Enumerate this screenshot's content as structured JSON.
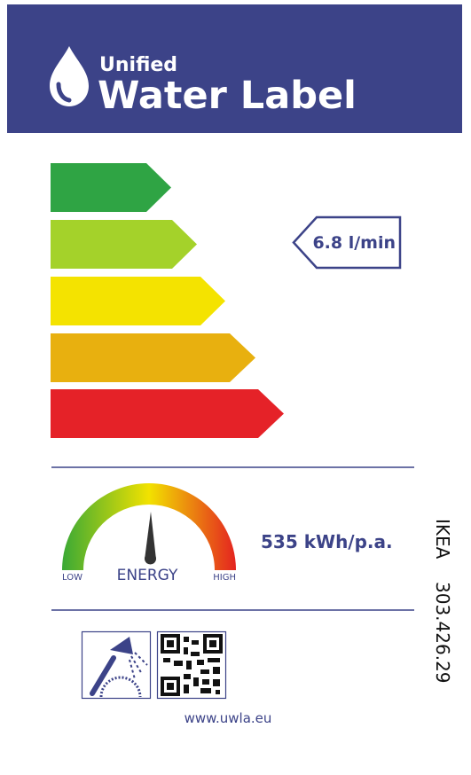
{
  "header": {
    "subtitle": "Unified",
    "title": "Water Label"
  },
  "flow_rate": "6.8 l/min",
  "energy": {
    "value": "535 kWh/p.a.",
    "low": "LOW",
    "label": "ENERGY",
    "high": "HIGH"
  },
  "product": {
    "brand": "IKEA",
    "article": "303.426.29"
  },
  "footer": {
    "url": "www.uwla.eu"
  }
}
